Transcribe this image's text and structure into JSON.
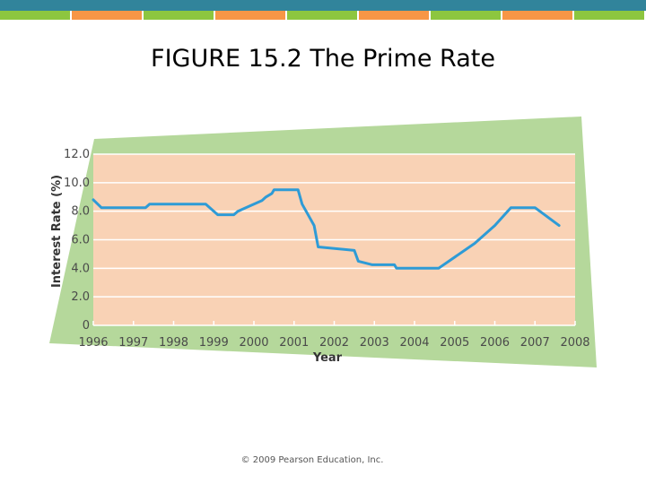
{
  "header": {
    "stripe_colors": [
      "#8dc63f",
      "#f79646",
      "#8dc63f",
      "#f79646",
      "#8dc63f",
      "#f79646",
      "#8dc63f",
      "#f79646",
      "#8dc63f"
    ],
    "band_color": "#31849b"
  },
  "slide": {
    "title": "FIGURE 15.2 The Prime Rate",
    "copyright": "© 2009 Pearson Education, Inc."
  },
  "colors": {
    "backdrop": "#b5d89b",
    "plot_bg": "#f9d2b5",
    "grid": "#ffffff",
    "line": "#2e9bd6"
  },
  "chart_data": {
    "type": "line",
    "xlabel": "Year",
    "ylabel": "Interest Rate (%)",
    "xlim": [
      1996,
      2008
    ],
    "ylim": [
      0,
      12
    ],
    "x_ticks": [
      1996,
      1997,
      1998,
      1999,
      2000,
      2001,
      2002,
      2003,
      2004,
      2005,
      2006,
      2007,
      2008
    ],
    "y_ticks": [
      "0",
      "2.0",
      "4.0",
      "6.0",
      "8.0",
      "10.0",
      "12.0"
    ],
    "grid": true,
    "series": [
      {
        "x": [
          1996.0,
          1996.2,
          1997.3,
          1997.4,
          1998.8,
          1999.1,
          1999.5,
          1999.6,
          1999.8,
          2000.0,
          2000.2,
          2000.3,
          2000.45,
          2000.5,
          2001.1,
          2001.2,
          2001.3,
          2001.5,
          2001.6,
          2002.5,
          2002.6,
          2002.95,
          2003.1,
          2003.5,
          2003.55,
          2004.6,
          2005.5,
          2006.0,
          2006.4,
          2007.0,
          2007.6
        ],
        "y": [
          8.8,
          8.25,
          8.25,
          8.5,
          8.5,
          7.75,
          7.75,
          8.0,
          8.25,
          8.5,
          8.75,
          9.0,
          9.25,
          9.5,
          9.5,
          8.5,
          8.0,
          7.0,
          5.5,
          5.25,
          4.5,
          4.25,
          4.25,
          4.25,
          4.0,
          4.0,
          5.75,
          7.0,
          8.25,
          8.25,
          7.0
        ]
      }
    ]
  }
}
